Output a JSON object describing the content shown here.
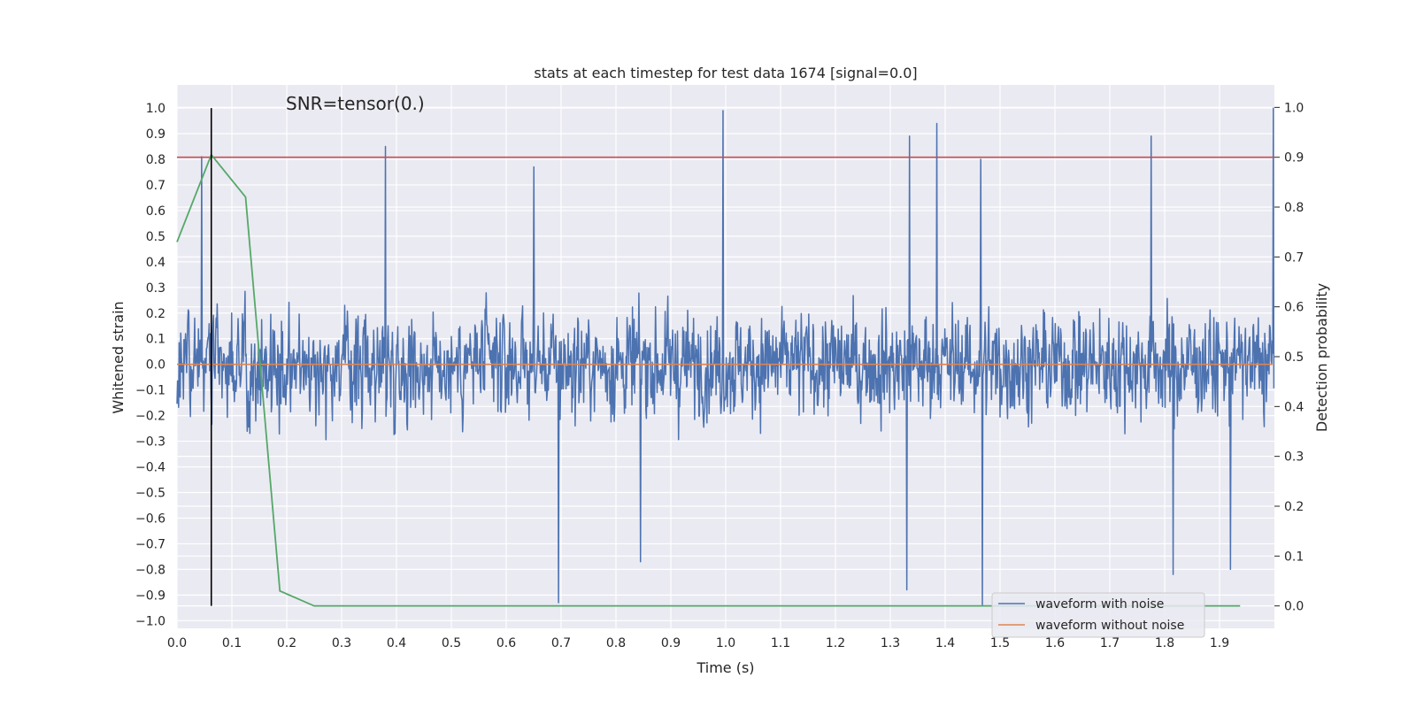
{
  "chart_data": {
    "type": "line",
    "title": "stats at each timestep for test data 1674 [signal=0.0]",
    "annotation": "SNR=tensor(0.)",
    "xlabel": "Time (s)",
    "ylabel_left": "Whitened strain",
    "ylabel_right": "Detection probability",
    "xlim": [
      0.0,
      2.0
    ],
    "ylim_left": [
      -1.03,
      1.09
    ],
    "ylim_right": [
      -0.045,
      1.045
    ],
    "x_ticks": [
      "0.0",
      "0.1",
      "0.2",
      "0.3",
      "0.4",
      "0.5",
      "0.6",
      "0.7",
      "0.8",
      "0.9",
      "1.0",
      "1.1",
      "1.2",
      "1.3",
      "1.4",
      "1.5",
      "1.6",
      "1.7",
      "1.8",
      "1.9"
    ],
    "y_ticks_left": [
      "1.0",
      "0.9",
      "0.8",
      "0.7",
      "0.6",
      "0.5",
      "0.4",
      "0.3",
      "0.2",
      "0.1",
      "0.0",
      "−0.1",
      "−0.2",
      "−0.3",
      "−0.4",
      "−0.5",
      "−0.6",
      "−0.7",
      "−0.8",
      "−0.9",
      "−1.0"
    ],
    "y_ticks_right": [
      "1.0",
      "0.9",
      "0.8",
      "0.7",
      "0.6",
      "0.5",
      "0.4",
      "0.3",
      "0.2",
      "0.1",
      "0.0"
    ],
    "grid": true,
    "legend_position": "lower-right",
    "series": [
      {
        "name": "waveform with noise",
        "color": "#4c72b0",
        "axis": "left",
        "kind": "noise",
        "n_points": 2048,
        "amplitude_range": [
          -0.95,
          1.0
        ],
        "peaks": [
          {
            "x": 0.045,
            "y": 0.81
          },
          {
            "x": 0.38,
            "y": 0.85
          },
          {
            "x": 0.65,
            "y": 0.77
          },
          {
            "x": 0.995,
            "y": 0.99
          },
          {
            "x": 1.335,
            "y": 0.89
          },
          {
            "x": 1.385,
            "y": 0.94
          },
          {
            "x": 1.465,
            "y": 0.8
          },
          {
            "x": 1.775,
            "y": 0.89
          },
          {
            "x": 1.998,
            "y": 1.0
          },
          {
            "x": 0.695,
            "y": -0.93
          },
          {
            "x": 0.845,
            "y": -0.77
          },
          {
            "x": 1.33,
            "y": -0.88
          },
          {
            "x": 1.468,
            "y": -0.94
          },
          {
            "x": 1.815,
            "y": -0.82
          },
          {
            "x": 1.92,
            "y": -0.8
          }
        ]
      },
      {
        "name": "waveform without noise",
        "color": "#dd8452",
        "axis": "left",
        "x": [
          0.0,
          2.0
        ],
        "y": [
          0.0,
          0.0
        ]
      },
      {
        "name": "",
        "color": "#55a868",
        "axis": "right",
        "x": [
          0.0,
          0.0625,
          0.125,
          0.1875,
          0.25,
          0.3125,
          1.9375
        ],
        "y": [
          0.73,
          0.905,
          0.82,
          0.03,
          0.0,
          0.0,
          0.0
        ]
      }
    ],
    "threshold": {
      "axis": "right",
      "value": 0.9,
      "color": "#c44e52"
    },
    "vline": {
      "x": 0.0625,
      "color": "#000000"
    }
  }
}
